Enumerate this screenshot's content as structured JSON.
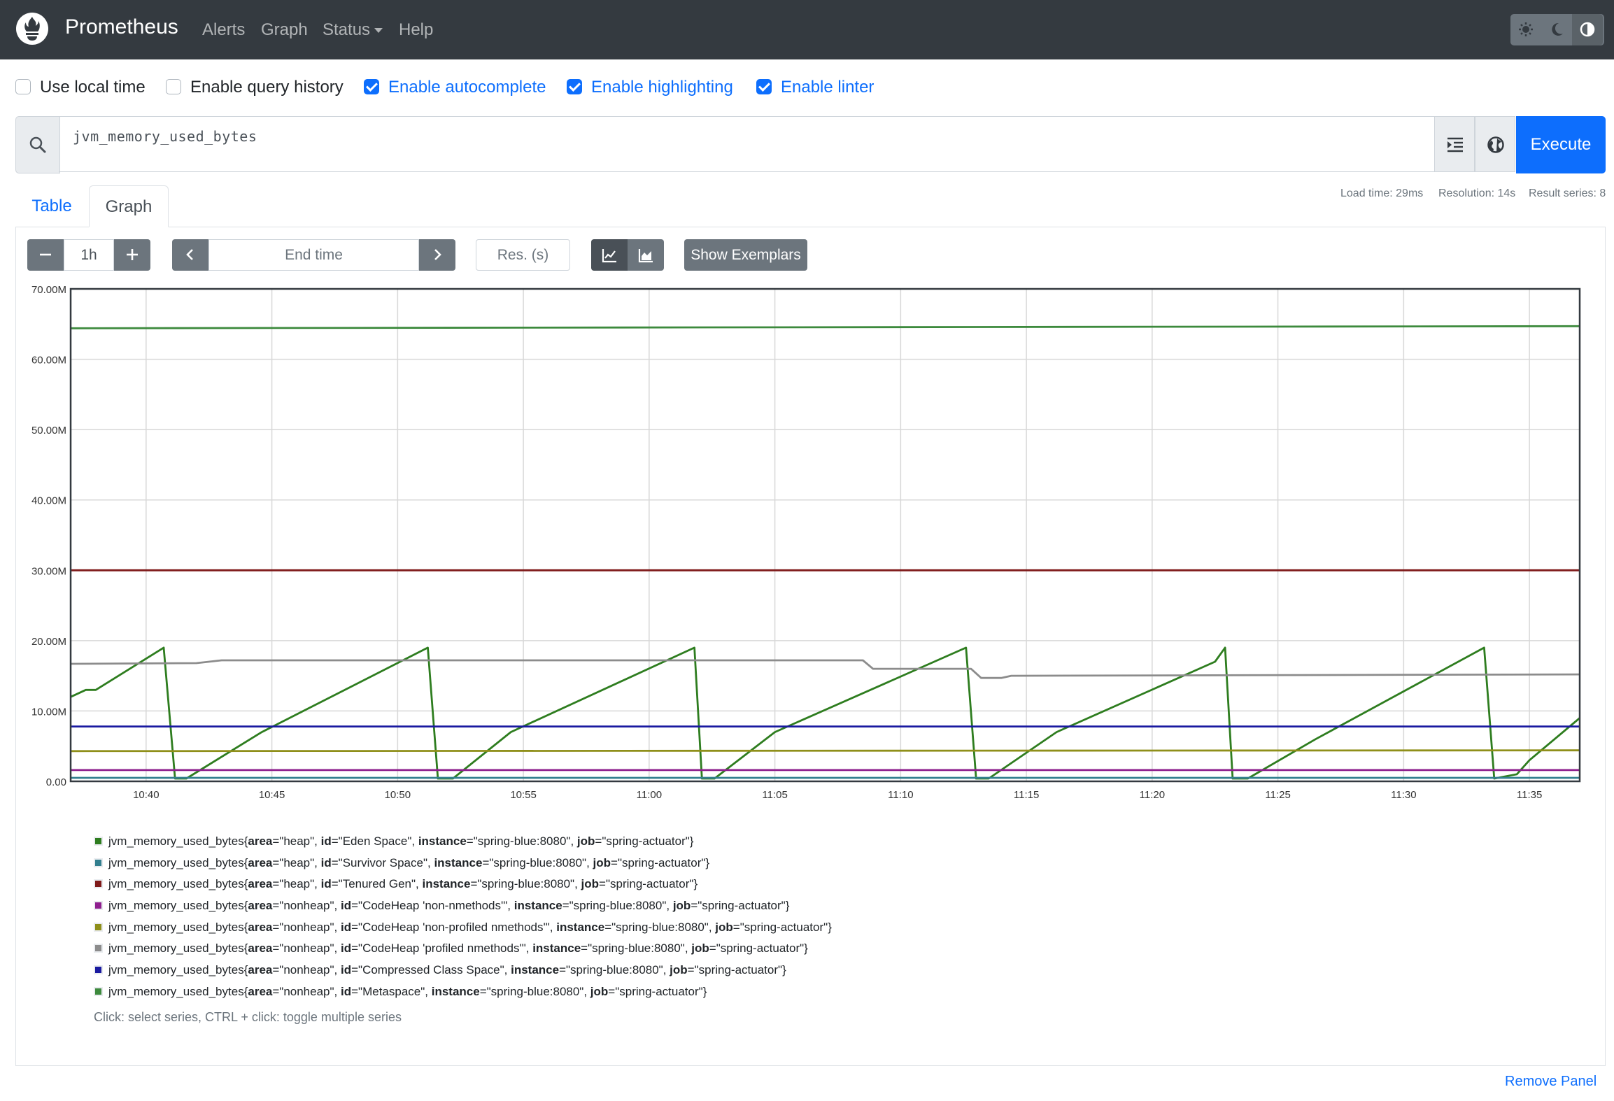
{
  "navbar": {
    "brand": "Prometheus",
    "links": [
      "Alerts",
      "Graph",
      "Status",
      "Help"
    ]
  },
  "options": [
    {
      "label": "Use local time",
      "checked": false
    },
    {
      "label": "Enable query history",
      "checked": false
    },
    {
      "label": "Enable autocomplete",
      "checked": true
    },
    {
      "label": "Enable highlighting",
      "checked": true
    },
    {
      "label": "Enable linter",
      "checked": true
    }
  ],
  "query": {
    "expression": "jvm_memory_used_bytes",
    "execute_label": "Execute"
  },
  "stats": {
    "load_time": "Load time: 29ms",
    "resolution": "Resolution: 14s",
    "result_series": "Result series: 8"
  },
  "tabs": [
    "Table",
    "Graph"
  ],
  "controls": {
    "range": "1h",
    "end_time_placeholder": "End time",
    "res_placeholder": "Res. (s)",
    "exemplars_label": "Show Exemplars"
  },
  "colors": {
    "accent": "#0d6efd",
    "navbar": "#343a40"
  },
  "chart_data": {
    "type": "line",
    "y_ticks": [
      "0.00",
      "10.00M",
      "20.00M",
      "30.00M",
      "40.00M",
      "50.00M",
      "60.00M",
      "70.00M"
    ],
    "ylim": [
      0,
      70000000
    ],
    "x_ticks": [
      "10:40",
      "10:45",
      "10:50",
      "10:55",
      "11:00",
      "11:05",
      "11:10",
      "11:15",
      "11:20",
      "11:25",
      "11:30",
      "11:35"
    ],
    "x_range_minutes": [
      "10:37",
      "11:37"
    ],
    "grid": true,
    "series": [
      {
        "metric": "jvm_memory_used_bytes",
        "labels": [
          [
            "area",
            "heap"
          ],
          [
            "id",
            "Eden Space"
          ],
          [
            "instance",
            "spring-blue:8080"
          ],
          [
            "job",
            "spring-actuator"
          ]
        ],
        "color": "#2e7d1f",
        "kind": "sawtooth",
        "points": [
          [
            0,
            12
          ],
          [
            0.6,
            13
          ],
          [
            1,
            13
          ],
          [
            3.7,
            19
          ],
          [
            4.15,
            0.4
          ],
          [
            4.6,
            0.4
          ],
          [
            7.6,
            7
          ],
          [
            14.2,
            19
          ],
          [
            14.6,
            0.4
          ],
          [
            15.2,
            0.4
          ],
          [
            17.5,
            7
          ],
          [
            24.8,
            19
          ],
          [
            25.1,
            0.4
          ],
          [
            25.6,
            0.4
          ],
          [
            28,
            7
          ],
          [
            35.6,
            19
          ],
          [
            36,
            0.4
          ],
          [
            36.5,
            0.4
          ],
          [
            39.2,
            7
          ],
          [
            45.5,
            17
          ],
          [
            45.9,
            19
          ],
          [
            46.2,
            0.4
          ],
          [
            46.8,
            0.4
          ],
          [
            49.5,
            6
          ],
          [
            56.2,
            19
          ],
          [
            56.6,
            0.4
          ],
          [
            57.5,
            1
          ],
          [
            58,
            3
          ],
          [
            60,
            9
          ]
        ]
      },
      {
        "metric": "jvm_memory_used_bytes",
        "labels": [
          [
            "area",
            "heap"
          ],
          [
            "id",
            "Survivor Space"
          ],
          [
            "instance",
            "spring-blue:8080"
          ],
          [
            "job",
            "spring-actuator"
          ]
        ],
        "color": "#337f8f",
        "kind": "flat",
        "points": [
          [
            0,
            0.5
          ],
          [
            60,
            0.5
          ]
        ]
      },
      {
        "metric": "jvm_memory_used_bytes",
        "labels": [
          [
            "area",
            "heap"
          ],
          [
            "id",
            "Tenured Gen"
          ],
          [
            "instance",
            "spring-blue:8080"
          ],
          [
            "job",
            "spring-actuator"
          ]
        ],
        "color": "#7f1a1a",
        "kind": "flat",
        "points": [
          [
            0,
            30
          ],
          [
            60,
            30
          ]
        ]
      },
      {
        "metric": "jvm_memory_used_bytes",
        "labels": [
          [
            "area",
            "nonheap"
          ],
          [
            "id",
            "CodeHeap 'non-nmethods'"
          ],
          [
            "instance",
            "spring-blue:8080"
          ],
          [
            "job",
            "spring-actuator"
          ]
        ],
        "color": "#8e1f8e",
        "kind": "flat",
        "points": [
          [
            0,
            1.6
          ],
          [
            60,
            1.6
          ]
        ]
      },
      {
        "metric": "jvm_memory_used_bytes",
        "labels": [
          [
            "area",
            "nonheap"
          ],
          [
            "id",
            "CodeHeap 'non-profiled nmethods'"
          ],
          [
            "instance",
            "spring-blue:8080"
          ],
          [
            "job",
            "spring-actuator"
          ]
        ],
        "color": "#8f8f1a",
        "kind": "flat",
        "points": [
          [
            0,
            4.3
          ],
          [
            60,
            4.4
          ]
        ]
      },
      {
        "metric": "jvm_memory_used_bytes",
        "labels": [
          [
            "area",
            "nonheap"
          ],
          [
            "id",
            "CodeHeap 'profiled nmethods'"
          ],
          [
            "instance",
            "spring-blue:8080"
          ],
          [
            "job",
            "spring-actuator"
          ]
        ],
        "color": "#8c8c8c",
        "kind": "step",
        "points": [
          [
            0,
            16.7
          ],
          [
            5,
            16.8
          ],
          [
            6,
            17.2
          ],
          [
            31.5,
            17.2
          ],
          [
            31.9,
            16
          ],
          [
            35.8,
            16
          ],
          [
            36.2,
            14.7
          ],
          [
            37,
            14.7
          ],
          [
            37.4,
            15
          ],
          [
            60,
            15.2
          ]
        ]
      },
      {
        "metric": "jvm_memory_used_bytes",
        "labels": [
          [
            "area",
            "nonheap"
          ],
          [
            "id",
            "Compressed Class Space"
          ],
          [
            "instance",
            "spring-blue:8080"
          ],
          [
            "job",
            "spring-actuator"
          ]
        ],
        "color": "#1a1aa0",
        "kind": "flat",
        "points": [
          [
            0,
            7.8
          ],
          [
            60,
            7.8
          ]
        ]
      },
      {
        "metric": "jvm_memory_used_bytes",
        "labels": [
          [
            "area",
            "nonheap"
          ],
          [
            "id",
            "Metaspace"
          ],
          [
            "instance",
            "spring-blue:8080"
          ],
          [
            "job",
            "spring-actuator"
          ]
        ],
        "color": "#3d8a3d",
        "kind": "flat",
        "points": [
          [
            0,
            64.4
          ],
          [
            60,
            64.7
          ]
        ]
      }
    ]
  },
  "legend_hint": "Click: select series, CTRL + click: toggle multiple series",
  "remove_label": "Remove Panel"
}
